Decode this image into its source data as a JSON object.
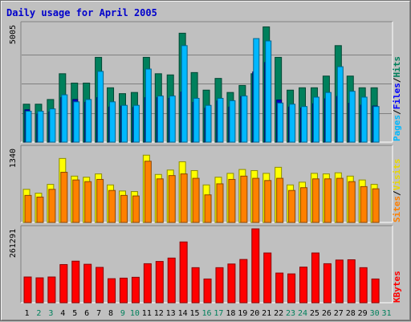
{
  "chart_data": [
    {
      "type": "bar",
      "title": "Daily usage for April 2005",
      "x": [
        "1",
        "2",
        "3",
        "4",
        "5",
        "6",
        "7",
        "8",
        "9",
        "10",
        "11",
        "12",
        "13",
        "14",
        "15",
        "16",
        "17",
        "18",
        "19",
        "20",
        "21",
        "22",
        "23",
        "24",
        "25",
        "26",
        "27",
        "28",
        "29",
        "30",
        "31"
      ],
      "weekend_days": [
        "2",
        "3",
        "9",
        "10",
        "16",
        "17",
        "23",
        "24",
        "30",
        "31"
      ],
      "ymax": 5005,
      "ymax_label": "5005",
      "series": [
        {
          "name": "Hits",
          "color": "#00805c",
          "values": [
            1620,
            1620,
            1820,
            2920,
            2520,
            2520,
            3620,
            2320,
            2070,
            2120,
            3620,
            2920,
            2870,
            4650,
            2970,
            2220,
            2720,
            2120,
            2420,
            2920,
            4920,
            3620,
            2220,
            2320,
            2320,
            2820,
            4120,
            2820,
            2320,
            2320,
            null
          ]
        },
        {
          "name": "Pages",
          "color": "#0000c8",
          "values": [
            1380,
            1200,
            1290,
            1900,
            1820,
            1700,
            1900,
            1500,
            1540,
            1480,
            1900,
            1900,
            1870,
            2140,
            1700,
            1450,
            1760,
            1500,
            1950,
            3000,
            3400,
            1800,
            1500,
            1460,
            1640,
            1850,
            1950,
            1660,
            1580,
            1540,
            null
          ]
        },
        {
          "name": "Files",
          "color": "#00b8ff",
          "values": [
            1320,
            1320,
            1420,
            2020,
            1720,
            1820,
            3020,
            1720,
            1570,
            1570,
            3120,
            1970,
            1970,
            4120,
            1870,
            1570,
            1870,
            1770,
            1970,
            4420,
            4320,
            1670,
            1620,
            1520,
            1920,
            2120,
            3220,
            2170,
            1920,
            1520,
            null
          ]
        }
      ],
      "legend_right_top": [
        "Hits",
        "Files",
        "Pages"
      ]
    },
    {
      "type": "bar",
      "ymax": 1340,
      "ymax_label": "1340",
      "series": [
        {
          "name": "Visits",
          "color": "#ffff00",
          "values": [
            600,
            530,
            690,
            1160,
            840,
            820,
            880,
            680,
            570,
            560,
            1220,
            870,
            950,
            1100,
            940,
            680,
            820,
            890,
            960,
            940,
            890,
            1000,
            680,
            730,
            890,
            880,
            900,
            840,
            770,
            690,
            null
          ]
        },
        {
          "name": "Sites",
          "color": "#ff8000",
          "values": [
            490,
            460,
            600,
            910,
            770,
            740,
            780,
            580,
            490,
            480,
            1110,
            790,
            850,
            880,
            800,
            500,
            700,
            780,
            840,
            800,
            760,
            800,
            580,
            630,
            790,
            790,
            800,
            740,
            650,
            610,
            null
          ]
        }
      ],
      "legend_right_mid": [
        "Sites",
        "Visits"
      ]
    },
    {
      "type": "bar",
      "ymax": 261291,
      "ymax_label": "261291",
      "series": [
        {
          "name": "KBytes",
          "color": "#ff0000",
          "values": [
            91000,
            88000,
            91000,
            135000,
            147000,
            136000,
            125000,
            85000,
            87000,
            90000,
            138000,
            146000,
            158000,
            215000,
            124000,
            84000,
            124000,
            137000,
            153000,
            261291,
            176000,
            105000,
            102000,
            126000,
            176000,
            138000,
            151000,
            152000,
            124000,
            84000,
            null
          ]
        }
      ],
      "legend_right_bot": [
        "KBytes"
      ]
    }
  ]
}
